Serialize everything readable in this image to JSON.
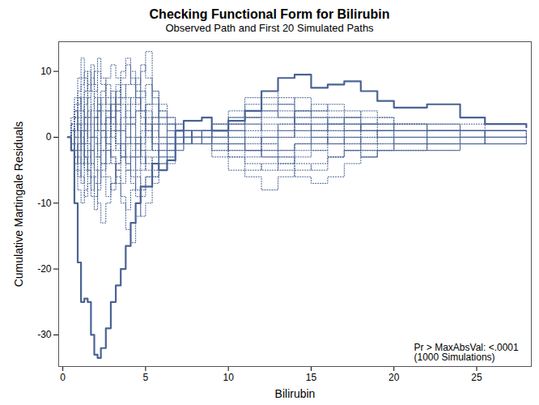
{
  "chart_data": {
    "type": "line",
    "title": "Checking Functional Form for Bilirubin",
    "subtitle": "Observed Path and First 20 Simulated Paths",
    "x_label": "Bilirubin",
    "y_label": "Cumulative Martingale Residuals",
    "annotations": [
      "Pr > MaxAbsVal: <.0001",
      "(1000 Simulations)"
    ],
    "xlim": [
      -0.25,
      28.3
    ],
    "xticks": [
      0,
      5,
      10,
      15,
      20,
      25
    ],
    "ylim": [
      -34.8,
      14.5
    ],
    "yticks": [
      -30,
      -20,
      -10,
      0,
      10
    ],
    "grid": false,
    "x": [
      0.3,
      0.5,
      0.7,
      0.9,
      1.1,
      1.3,
      1.5,
      1.7,
      1.9,
      2.1,
      2.3,
      2.6,
      2.9,
      3.2,
      3.5,
      3.8,
      4.1,
      4.4,
      4.7,
      5.0,
      5.4,
      5.8,
      6.3,
      6.8,
      7.3,
      7.8,
      8.4,
      9,
      10,
      11,
      12,
      13,
      14,
      15,
      16,
      17,
      18,
      19,
      20,
      22,
      24,
      25.5,
      28
    ],
    "series": [
      {
        "color": "#4a6394",
        "line_style": "dotted",
        "values": [
          0,
          2,
          4,
          6,
          3,
          1,
          -2,
          0,
          3,
          5,
          2,
          4,
          7,
          5,
          2,
          0,
          -3,
          -1,
          2,
          5,
          3,
          0,
          -2,
          0,
          1,
          0,
          -1,
          -2,
          -3,
          -4,
          -5,
          -4,
          -3,
          -2,
          -1,
          0,
          1,
          0,
          -1,
          -1,
          0,
          -1,
          -1
        ]
      },
      {
        "color": "#4a6394",
        "line_style": "dotted",
        "values": [
          0,
          -1,
          -3,
          -5,
          -7,
          -4,
          -2,
          -6,
          -9,
          -5,
          -2,
          0,
          3,
          6,
          9,
          11,
          8,
          5,
          10,
          13,
          7,
          3,
          1,
          -1,
          0,
          1,
          0,
          1,
          2,
          4,
          5,
          6,
          4,
          3,
          2,
          3,
          2,
          1,
          1,
          2,
          1,
          0,
          0
        ]
      },
      {
        "color": "#4a6394",
        "line_style": "dotted",
        "values": [
          0,
          1,
          3,
          5,
          8,
          10,
          7,
          9,
          6,
          4,
          1,
          -2,
          -4,
          -7,
          -10,
          -14,
          -16,
          -12,
          -9,
          -6,
          -3,
          0,
          2,
          1,
          0,
          -1,
          0,
          0,
          -1,
          -2,
          -3,
          -5,
          -6,
          -7,
          -6,
          -4,
          -3,
          -2,
          -2,
          -1,
          -1,
          0,
          0
        ]
      },
      {
        "color": "#4a6394",
        "line_style": "dotted",
        "values": [
          0,
          -2,
          -4,
          -2,
          1,
          3,
          6,
          8,
          10,
          12,
          9,
          6,
          3,
          1,
          -2,
          -4,
          -6,
          -8,
          -5,
          -3,
          -5,
          -2,
          0,
          1,
          1,
          0,
          1,
          2,
          1,
          3,
          4,
          3,
          2,
          1,
          2,
          3,
          4,
          3,
          2,
          1,
          2,
          1,
          1
        ]
      },
      {
        "color": "#4a6394",
        "line_style": "dotted",
        "values": [
          0,
          1,
          -1,
          -3,
          -6,
          -9,
          -7,
          -4,
          -1,
          2,
          5,
          8,
          6,
          4,
          1,
          -1,
          2,
          4,
          6,
          8,
          5,
          2,
          -1,
          0,
          -1,
          0,
          -1,
          -3,
          -5,
          -6,
          -8,
          -6,
          -4,
          -5,
          -3,
          -2,
          -3,
          -2,
          -1,
          -2,
          -1,
          -1,
          0
        ]
      },
      {
        "color": "#4a6394",
        "line_style": "dotted",
        "values": [
          0,
          3,
          6,
          9,
          12,
          9,
          6,
          3,
          0,
          -3,
          -6,
          -9,
          -7,
          -4,
          -1,
          2,
          5,
          8,
          11,
          9,
          6,
          3,
          1,
          2,
          1,
          0,
          1,
          0,
          2,
          3,
          2,
          1,
          0,
          -1,
          0,
          1,
          2,
          2,
          1,
          1,
          0,
          1,
          1
        ]
      },
      {
        "color": "#4a6394",
        "line_style": "dotted",
        "values": [
          0,
          -1,
          1,
          3,
          0,
          -3,
          -5,
          -8,
          -6,
          -3,
          0,
          3,
          5,
          2,
          -1,
          -4,
          -7,
          -9,
          -12,
          -10,
          -6,
          -3,
          -1,
          0,
          -1,
          0,
          1,
          2,
          4,
          6,
          7,
          5,
          3,
          2,
          1,
          0,
          -1,
          -1,
          0,
          -1,
          -1,
          0,
          0
        ]
      },
      {
        "color": "#4a6394",
        "line_style": "dotted",
        "values": [
          0,
          2,
          0,
          -2,
          -4,
          -2,
          1,
          4,
          7,
          10,
          8,
          5,
          2,
          -1,
          -3,
          -5,
          -2,
          0,
          -2,
          -4,
          -6,
          -4,
          -2,
          -1,
          0,
          1,
          0,
          -1,
          -2,
          -1,
          0,
          1,
          3,
          4,
          5,
          4,
          3,
          2,
          2,
          1,
          1,
          1,
          0
        ]
      },
      {
        "color": "#4a6394",
        "line_style": "dotted",
        "values": [
          0,
          -2,
          -5,
          -8,
          -10,
          -8,
          -5,
          -2,
          1,
          4,
          7,
          9,
          11,
          9,
          6,
          3,
          0,
          -2,
          1,
          3,
          1,
          -1,
          0,
          1,
          0,
          0,
          -1,
          1,
          0,
          -2,
          -3,
          -4,
          -2,
          -1,
          0,
          -1,
          -2,
          -2,
          -1,
          0,
          0,
          -1,
          0
        ]
      },
      {
        "color": "#4a6394",
        "line_style": "dotted",
        "values": [
          0,
          1,
          3,
          1,
          -1,
          2,
          4,
          2,
          0,
          -2,
          -4,
          -6,
          -8,
          -5,
          -3,
          0,
          3,
          6,
          4,
          2,
          -1,
          -4,
          -3,
          -1,
          0,
          -1,
          0,
          1,
          3,
          2,
          1,
          2,
          4,
          5,
          4,
          3,
          2,
          3,
          2,
          2,
          1,
          1,
          1
        ]
      },
      {
        "color": "#4a6394",
        "line_style": "dotted",
        "values": [
          0,
          -1,
          -2,
          0,
          2,
          5,
          8,
          11,
          8,
          5,
          2,
          -1,
          -3,
          -6,
          -9,
          -11,
          -8,
          -5,
          -2,
          0,
          2,
          4,
          3,
          1,
          0,
          1,
          0,
          -1,
          -3,
          -5,
          -4,
          -2,
          -1,
          0,
          -1,
          -2,
          -1,
          0,
          -1,
          0,
          0,
          0,
          0
        ]
      },
      {
        "color": "#4a6394",
        "line_style": "dotted",
        "values": [
          0,
          2,
          4,
          2,
          0,
          -3,
          -6,
          -9,
          -11,
          -8,
          -5,
          -2,
          1,
          4,
          6,
          8,
          10,
          7,
          4,
          1,
          -2,
          -1,
          0,
          -1,
          0,
          0,
          1,
          0,
          1,
          0,
          -1,
          0,
          1,
          2,
          3,
          2,
          1,
          1,
          2,
          1,
          1,
          0,
          1
        ]
      },
      {
        "color": "#4a6394",
        "line_style": "dotted",
        "values": [
          0,
          -1,
          1,
          4,
          6,
          3,
          0,
          -2,
          -5,
          -7,
          -4,
          -1,
          2,
          5,
          8,
          6,
          3,
          0,
          -3,
          -5,
          -7,
          -5,
          -3,
          -2,
          -1,
          0,
          -1,
          -2,
          -1,
          1,
          3,
          5,
          6,
          4,
          3,
          2,
          1,
          1,
          0,
          0,
          1,
          0,
          0
        ]
      },
      {
        "color": "#4a6394",
        "line_style": "dotted",
        "values": [
          0,
          1,
          -2,
          -4,
          -1,
          1,
          3,
          5,
          3,
          1,
          -2,
          -4,
          -2,
          1,
          3,
          5,
          2,
          -1,
          -4,
          -2,
          0,
          2,
          2,
          1,
          0,
          1,
          1,
          2,
          0,
          -2,
          -1,
          -3,
          -5,
          -4,
          -3,
          -2,
          -2,
          -1,
          -2,
          -1,
          -1,
          -1,
          -1
        ]
      },
      {
        "color": "#4a6394",
        "line_style": "dotted",
        "values": [
          0,
          -2,
          0,
          2,
          4,
          7,
          10,
          7,
          4,
          1,
          -2,
          1,
          4,
          7,
          10,
          12,
          9,
          6,
          3,
          0,
          3,
          5,
          3,
          2,
          1,
          0,
          0,
          -1,
          -2,
          -3,
          -2,
          0,
          2,
          1,
          0,
          -1,
          0,
          1,
          0,
          1,
          0,
          0,
          0
        ]
      },
      {
        "color": "#4a6394",
        "line_style": "dotted",
        "values": [
          0,
          1,
          3,
          6,
          4,
          2,
          -1,
          -4,
          -7,
          -10,
          -13,
          -10,
          -7,
          -4,
          -1,
          -3,
          -5,
          -3,
          0,
          2,
          -1,
          -3,
          -2,
          -1,
          0,
          -1,
          0,
          1,
          2,
          3,
          4,
          3,
          1,
          0,
          1,
          2,
          1,
          0,
          0,
          1,
          0,
          1,
          0
        ]
      },
      {
        "color": "#4a6394",
        "line_style": "dotted",
        "values": [
          0,
          -1,
          -3,
          -1,
          1,
          -2,
          -4,
          -2,
          1,
          3,
          6,
          4,
          1,
          -1,
          -3,
          -1,
          2,
          4,
          2,
          5,
          7,
          4,
          2,
          1,
          1,
          0,
          -1,
          0,
          -1,
          -2,
          0,
          2,
          4,
          3,
          2,
          1,
          2,
          2,
          1,
          1,
          1,
          1,
          1
        ]
      },
      {
        "color": "#4a6394",
        "line_style": "dotted",
        "values": [
          0,
          2,
          5,
          7,
          9,
          6,
          3,
          0,
          2,
          4,
          1,
          -1,
          -3,
          -5,
          -7,
          -5,
          -3,
          -6,
          -8,
          -6,
          -4,
          -2,
          -1,
          0,
          1,
          0,
          1,
          1,
          3,
          5,
          6,
          4,
          2,
          0,
          -1,
          0,
          -1,
          0,
          0,
          -1,
          0,
          0,
          0
        ]
      },
      {
        "color": "#4a6394",
        "line_style": "dotted",
        "values": [
          0,
          -1,
          -3,
          -6,
          -4,
          -1,
          2,
          0,
          -3,
          -1,
          1,
          3,
          0,
          -2,
          1,
          4,
          6,
          9,
          7,
          4,
          2,
          0,
          -1,
          -1,
          0,
          1,
          0,
          0,
          -1,
          0,
          -2,
          -3,
          -1,
          -2,
          -3,
          -2,
          -3,
          -2,
          -2,
          -2,
          -1,
          -1,
          -1
        ]
      },
      {
        "color": "#4a6394",
        "line_style": "dotted",
        "values": [
          0,
          1,
          2,
          0,
          -2,
          -5,
          -3,
          0,
          3,
          6,
          4,
          2,
          5,
          8,
          5,
          2,
          -1,
          -3,
          -1,
          1,
          -2,
          -5,
          -4,
          -2,
          -1,
          0,
          1,
          0,
          1,
          2,
          0,
          -2,
          -1,
          1,
          2,
          1,
          0,
          1,
          1,
          0,
          0,
          0,
          0
        ]
      },
      {
        "color": "#4a6394",
        "line_style": "solid",
        "values": [
          0,
          -2,
          -10,
          -19,
          -25,
          -24.5,
          -25,
          -30,
          -33,
          -33.5,
          -32,
          -29,
          -25,
          -22.5,
          -20,
          -16.5,
          -13,
          -10,
          -7.5,
          -7.5,
          -4,
          -5,
          -3.5,
          1,
          2.5,
          2.5,
          3,
          1,
          2.5,
          4,
          7,
          9,
          9.5,
          7.5,
          8,
          8.5,
          7,
          5.5,
          4.5,
          5,
          3,
          2,
          1.5
        ]
      }
    ]
  }
}
